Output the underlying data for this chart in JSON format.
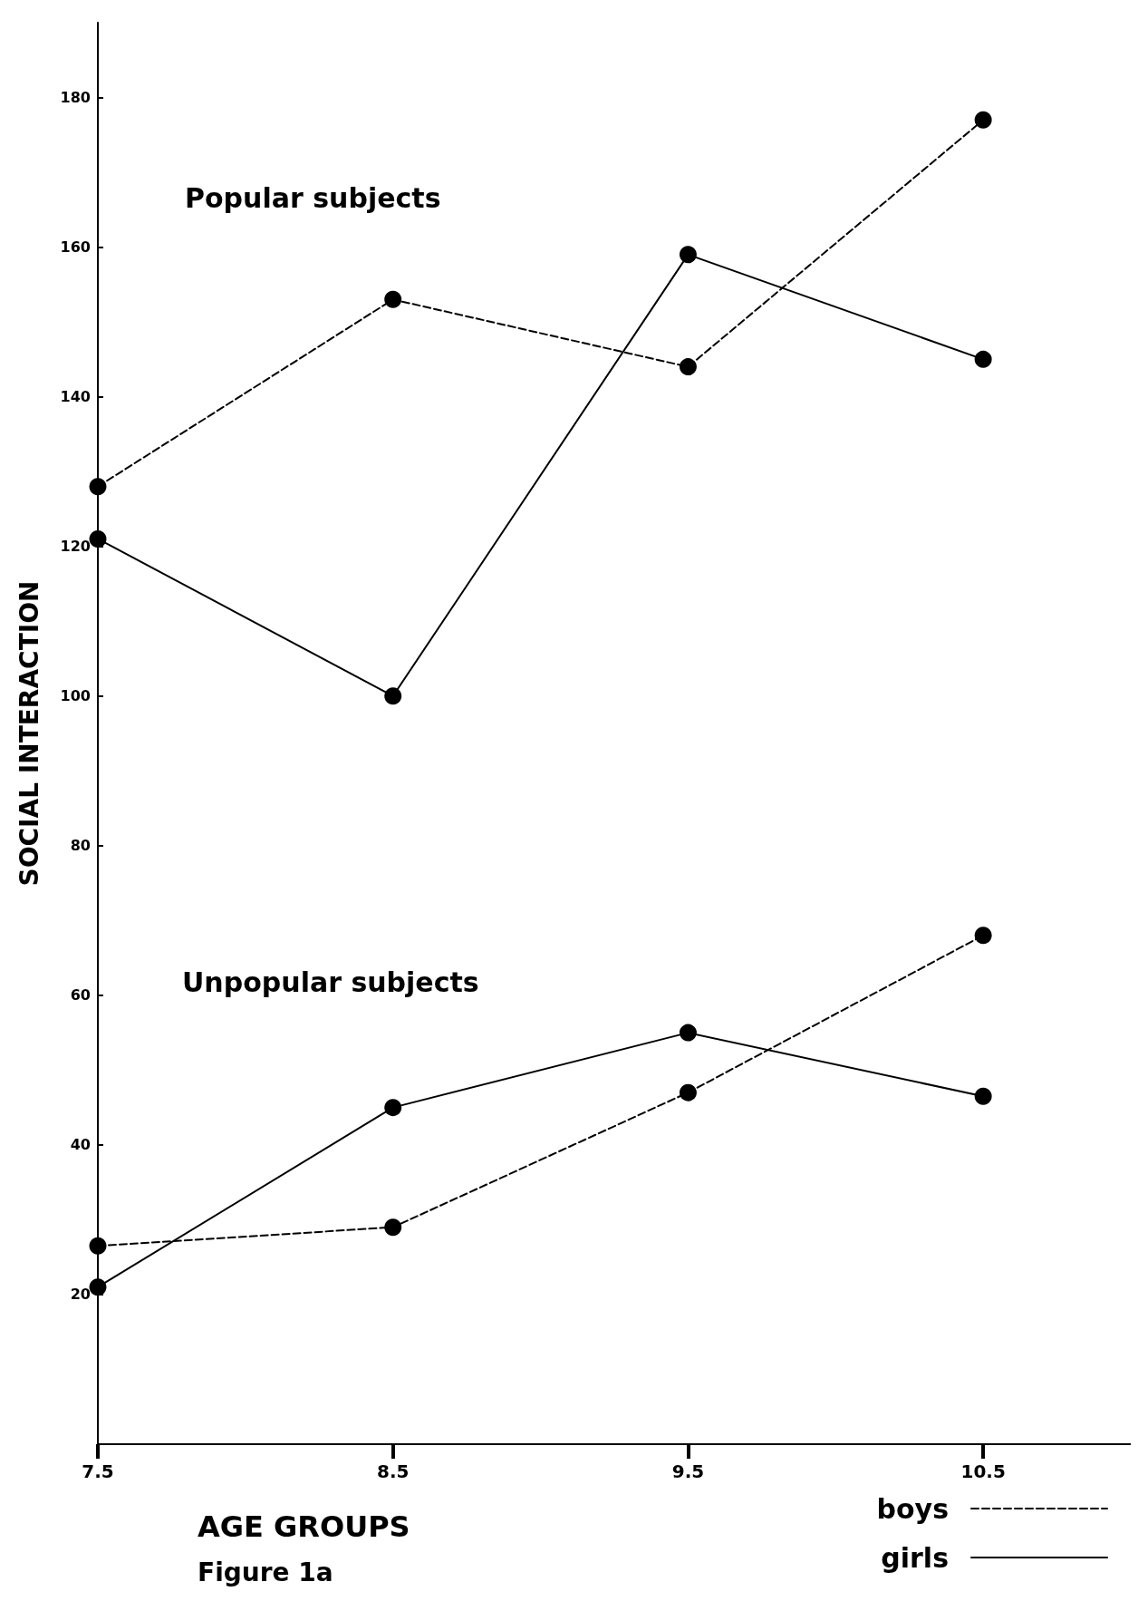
{
  "chart_data": {
    "type": "line",
    "xlabel": "AGE GROUPS",
    "ylabel": "SOCIAL INTERACTION",
    "x": [
      7.5,
      8.5,
      9.5,
      10.5
    ],
    "xlim": [
      7.5,
      11
    ],
    "xticks": [
      7.5,
      8.5,
      9.5,
      10.5
    ],
    "ylim": [
      0,
      190
    ],
    "yticks": [
      20,
      40,
      60,
      80,
      100,
      120,
      140,
      160,
      180
    ],
    "marker": "circle",
    "legend": "bottom right",
    "series": [
      {
        "name": "boys",
        "color": "#000000",
        "line_style": "dashed",
        "values": [
          128,
          153,
          144,
          177
        ]
      },
      {
        "name": "girls",
        "color": "#000000",
        "line_style": "solid",
        "values": [
          121,
          100,
          159,
          145
        ]
      },
      {
        "color": "#000000",
        "line_style": "dashed",
        "values": [
          26.5,
          29,
          47,
          68
        ]
      },
      {
        "color": "#000000",
        "line_style": "solid",
        "values": [
          21,
          45,
          55,
          46.5
        ]
      }
    ],
    "annotations": [
      "Popular subjects",
      "Unpopular subjects",
      "Figure 1a"
    ]
  }
}
